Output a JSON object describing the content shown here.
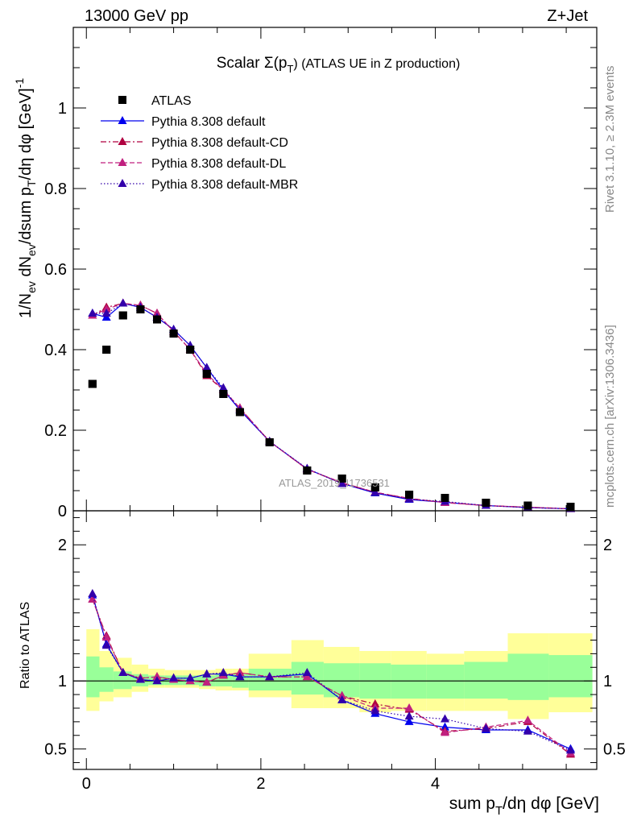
{
  "header": {
    "left_label": "13000 GeV pp",
    "right_label": "Z+Jet"
  },
  "side_labels": {
    "rivet": "Rivet 3.1.10, ≥ 2.3M events",
    "mcplots": "mcplots.cern.ch [arXiv:1306.3436]"
  },
  "watermark": "ATLAS_2019_I1736531",
  "chart_data": [
    {
      "type": "scatter",
      "panel": "main",
      "title_main": "Scalar Σ(p",
      "title_sub": "T",
      "title_tail": ") (ATLAS UE in Z production)",
      "ylabel": "1/N_ev dN_ev/dsum p_T/dη dφ [GeV]^-1",
      "ylim": [
        0,
        1.2
      ],
      "xlim": [
        -0.15,
        5.85
      ],
      "x_ticks": [
        0,
        2,
        4
      ],
      "y_ticks": [
        {
          "value": 0,
          "label": "0"
        },
        {
          "value": 0.2,
          "label": "0.2"
        },
        {
          "value": 0.4,
          "label": "0.4"
        },
        {
          "value": 0.6,
          "label": "0.6"
        },
        {
          "value": 0.8,
          "label": "0.8"
        },
        {
          "value": 1.0,
          "label": "1"
        }
      ],
      "legend_position": "top-left",
      "x": [
        0.07,
        0.23,
        0.42,
        0.62,
        0.81,
        1.0,
        1.19,
        1.38,
        1.57,
        1.76,
        2.1,
        2.53,
        2.93,
        3.31,
        3.7,
        4.11,
        4.58,
        5.06,
        5.55
      ],
      "series": [
        {
          "name": "ATLAS",
          "color": "#000000",
          "marker": "square",
          "line": "none",
          "values": [
            0.315,
            0.4,
            0.485,
            0.5,
            0.475,
            0.44,
            0.4,
            0.34,
            0.29,
            0.245,
            0.17,
            0.1,
            0.08,
            0.058,
            0.04,
            0.032,
            0.02,
            0.013,
            0.01
          ]
        },
        {
          "name": "Pythia 8.308 default",
          "color": "#0000ee",
          "marker": "triangle",
          "line": "solid",
          "values": [
            0.49,
            0.48,
            0.515,
            0.505,
            0.48,
            0.45,
            0.41,
            0.355,
            0.3,
            0.25,
            0.172,
            0.104,
            0.068,
            0.044,
            0.028,
            0.021,
            0.013,
            0.008,
            0.005
          ]
        },
        {
          "name": "Pythia 8.308 default-CD",
          "color": "#b00040",
          "marker": "triangle",
          "line": "dashdot",
          "values": [
            0.485,
            0.505,
            0.515,
            0.51,
            0.49,
            0.445,
            0.4,
            0.335,
            0.3,
            0.255,
            0.172,
            0.103,
            0.069,
            0.046,
            0.03,
            0.021,
            0.013,
            0.009,
            0.005
          ]
        },
        {
          "name": "Pythia 8.308 default-DL",
          "color": "#c0207f",
          "marker": "triangle",
          "line": "dashed",
          "values": [
            0.485,
            0.5,
            0.515,
            0.51,
            0.49,
            0.445,
            0.4,
            0.34,
            0.3,
            0.255,
            0.172,
            0.103,
            0.07,
            0.046,
            0.031,
            0.02,
            0.013,
            0.009,
            0.0048
          ]
        },
        {
          "name": "Pythia 8.308 default-MBR",
          "color": "#3300aa",
          "marker": "triangle",
          "line": "dotted",
          "values": [
            0.49,
            0.49,
            0.515,
            0.505,
            0.48,
            0.45,
            0.41,
            0.355,
            0.305,
            0.25,
            0.172,
            0.105,
            0.067,
            0.045,
            0.029,
            0.023,
            0.013,
            0.008,
            0.005
          ]
        }
      ]
    },
    {
      "type": "line",
      "panel": "ratio",
      "ylabel": "Ratio to ATLAS",
      "xlabel": "sum p_T/dη dφ [GeV]",
      "ylim": [
        0.35,
        2.25
      ],
      "xlim": [
        -0.15,
        5.85
      ],
      "x_ticks": [
        {
          "value": 0,
          "label": "0"
        },
        {
          "value": 2,
          "label": "2"
        },
        {
          "value": 4,
          "label": "4"
        }
      ],
      "y_ticks": [
        {
          "value": 0.5,
          "label": "0.5"
        },
        {
          "value": 1,
          "label": "1"
        },
        {
          "value": 2,
          "label": "2"
        }
      ],
      "bin_edges": [
        0,
        0.15,
        0.31,
        0.52,
        0.71,
        0.9,
        1.1,
        1.29,
        1.48,
        1.67,
        1.86,
        2.35,
        2.72,
        3.13,
        3.49,
        3.9,
        4.33,
        4.83,
        5.3,
        5.8
      ],
      "band_outer": [
        [
          0.78,
          1.38
        ],
        [
          0.85,
          1.22
        ],
        [
          0.88,
          1.17
        ],
        [
          0.92,
          1.12
        ],
        [
          0.95,
          1.09
        ],
        [
          0.95,
          1.08
        ],
        [
          0.95,
          1.08
        ],
        [
          0.94,
          1.08
        ],
        [
          0.93,
          1.09
        ],
        [
          0.93,
          1.09
        ],
        [
          0.88,
          1.2
        ],
        [
          0.8,
          1.3
        ],
        [
          0.8,
          1.25
        ],
        [
          0.77,
          1.22
        ],
        [
          0.78,
          1.22
        ],
        [
          0.78,
          1.2
        ],
        [
          0.78,
          1.22
        ],
        [
          0.72,
          1.35
        ],
        [
          0.77,
          1.35
        ]
      ],
      "band_inner": [
        [
          0.88,
          1.18
        ],
        [
          0.92,
          1.1
        ],
        [
          0.94,
          1.07
        ],
        [
          0.96,
          1.05
        ],
        [
          0.97,
          1.04
        ],
        [
          0.97,
          1.04
        ],
        [
          0.97,
          1.04
        ],
        [
          0.96,
          1.04
        ],
        [
          0.96,
          1.05
        ],
        [
          0.95,
          1.05
        ],
        [
          0.93,
          1.09
        ],
        [
          0.9,
          1.14
        ],
        [
          0.88,
          1.13
        ],
        [
          0.87,
          1.13
        ],
        [
          0.87,
          1.12
        ],
        [
          0.87,
          1.12
        ],
        [
          0.87,
          1.14
        ],
        [
          0.86,
          1.2
        ],
        [
          0.88,
          1.19
        ]
      ],
      "x": [
        0.07,
        0.23,
        0.42,
        0.62,
        0.81,
        1.0,
        1.19,
        1.38,
        1.57,
        1.76,
        2.1,
        2.53,
        2.93,
        3.31,
        3.7,
        4.11,
        4.58,
        5.06,
        5.55
      ],
      "series": [
        {
          "name": "Pythia 8.308 default",
          "color": "#0000ee",
          "line": "solid",
          "values": [
            1.63,
            1.27,
            1.06,
            1.01,
            1.0,
            1.02,
            1.02,
            1.05,
            1.05,
            1.03,
            1.03,
            1.05,
            0.86,
            0.76,
            0.7,
            0.66,
            0.64,
            0.64,
            0.5
          ]
        },
        {
          "name": "Pythia 8.308 default-CD",
          "color": "#b00040",
          "line": "dashdot",
          "values": [
            1.6,
            1.33,
            1.06,
            1.02,
            1.03,
            1.01,
            1.0,
            0.99,
            1.04,
            1.06,
            1.03,
            1.03,
            0.89,
            0.83,
            0.79,
            0.63,
            0.65,
            0.7,
            0.46
          ]
        },
        {
          "name": "Pythia 8.308 default-DL",
          "color": "#c0207f",
          "line": "dashed",
          "values": [
            1.6,
            1.32,
            1.06,
            1.02,
            1.03,
            1.01,
            1.0,
            0.99,
            1.04,
            1.06,
            1.03,
            1.03,
            0.89,
            0.8,
            0.8,
            0.62,
            0.66,
            0.71,
            0.47
          ]
        },
        {
          "name": "Pythia 8.308 default-MBR",
          "color": "#3300aa",
          "line": "dotted",
          "values": [
            1.64,
            1.26,
            1.06,
            1.01,
            1.0,
            1.02,
            1.02,
            1.05,
            1.06,
            1.03,
            1.03,
            1.06,
            0.86,
            0.78,
            0.74,
            0.72,
            0.65,
            0.63,
            0.49
          ]
        }
      ]
    }
  ]
}
